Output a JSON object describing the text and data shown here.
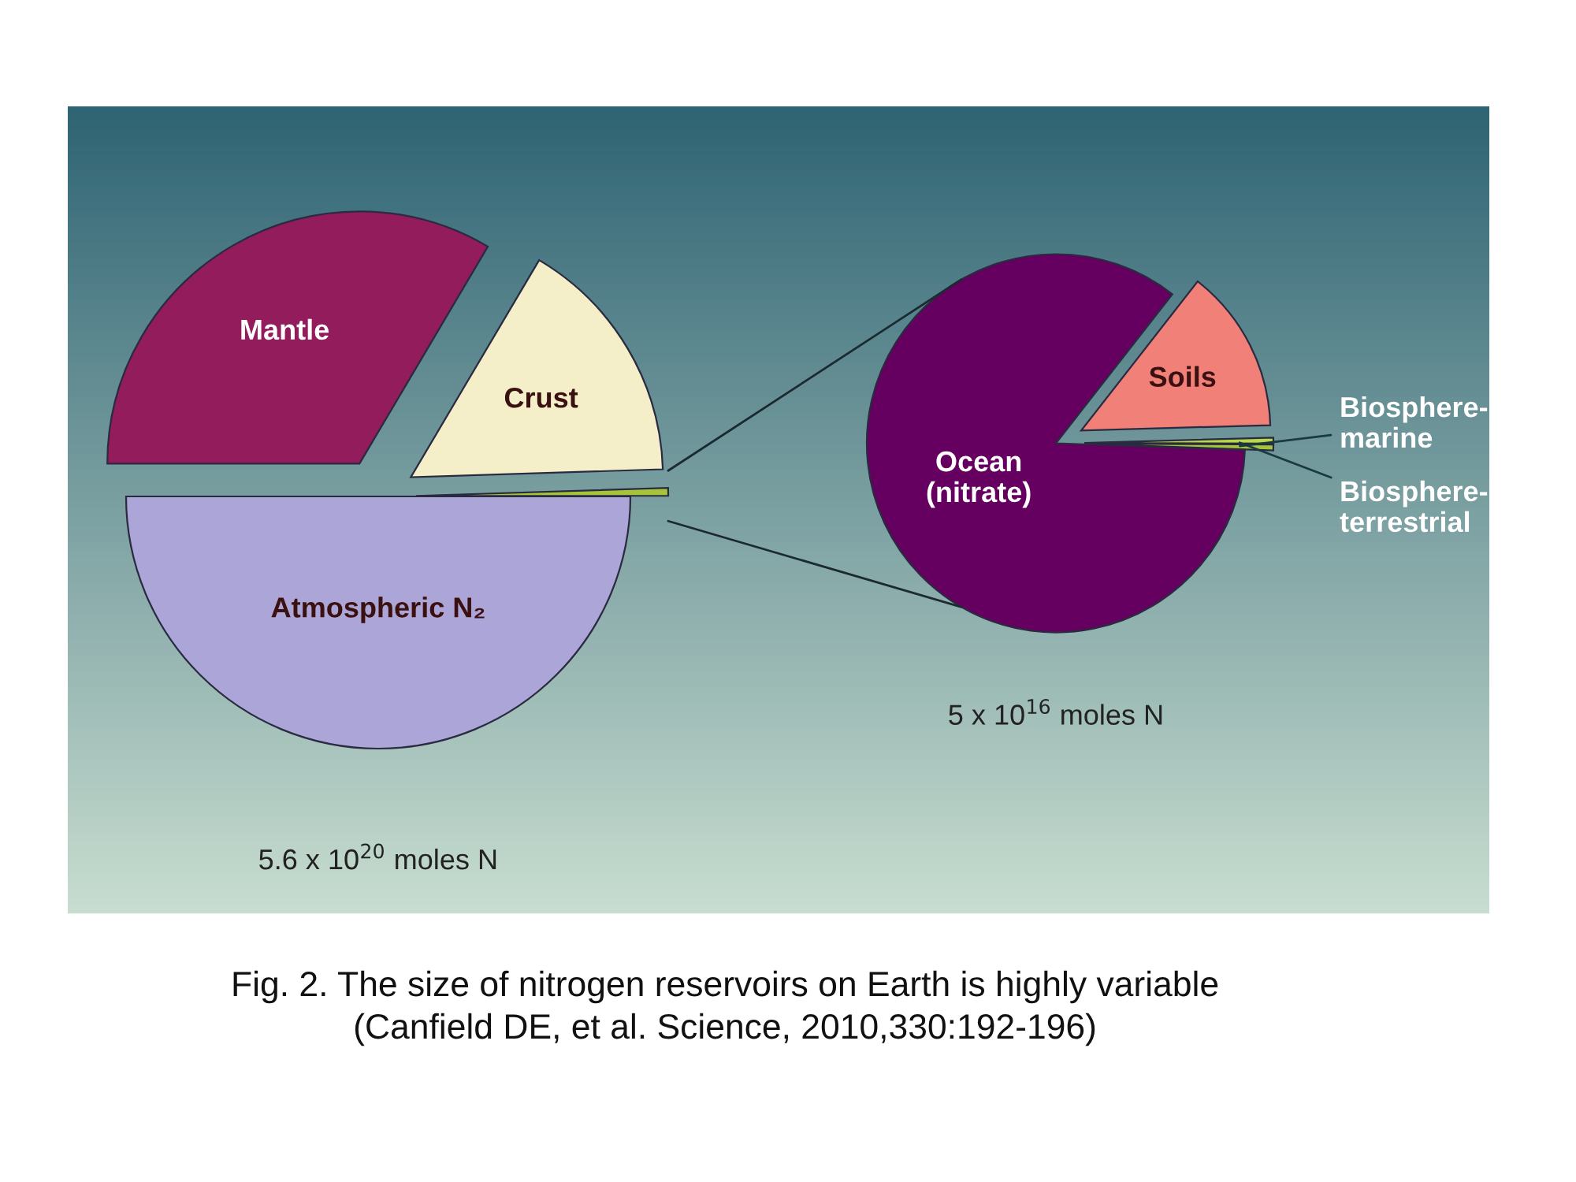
{
  "chart_data": [
    {
      "type": "pie",
      "categories": [
        "Atmospheric N₂",
        null,
        "Crust",
        "Mantle"
      ],
      "values": [
        50,
        0.5,
        16,
        33.5
      ],
      "colors": [
        "#aca6d8",
        "#a6c43a",
        "#f4efc8",
        "#921c5c"
      ],
      "annotations": [
        "5.6 x 10$^{20}$ moles N"
      ]
    },
    {
      "type": "pie",
      "categories": [
        "Biosphere-marine",
        "Biosphere-terrestrial",
        "Soils",
        "Ocean (nitrate)"
      ],
      "values": [
        0.5,
        0.5,
        14,
        85
      ],
      "colors": [
        "#a6c43a",
        "#b8d84a",
        "#f08078",
        "#650060"
      ],
      "annotations": [
        "5 x 10$^{16}$ moles N",
        "Fig. 2. The size of nitrogen reservoirs on Earth is highly variable",
        "(Canfield DE, et al. Science, 2010,330:192-196)"
      ]
    }
  ]
}
